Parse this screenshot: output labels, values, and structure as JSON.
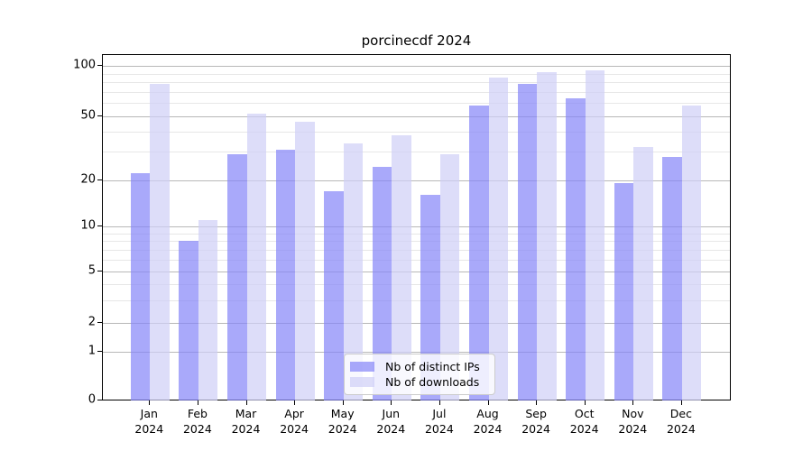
{
  "title": "porcinecdf 2024",
  "chart_data": {
    "type": "bar",
    "title": "porcinecdf 2024",
    "categories": [
      "Jan 2024",
      "Feb 2024",
      "Mar 2024",
      "Apr 2024",
      "May 2024",
      "Jun 2024",
      "Jul 2024",
      "Aug 2024",
      "Sep 2024",
      "Oct 2024",
      "Nov 2024",
      "Dec 2024"
    ],
    "series": [
      {
        "name": "Nb of distinct IPs",
        "color": "#8585f8",
        "values": [
          22,
          8,
          29,
          31,
          17,
          24,
          16,
          58,
          78,
          64,
          19,
          28
        ]
      },
      {
        "name": "Nb of downloads",
        "color": "#cfcff7",
        "values": [
          78,
          11,
          52,
          46,
          34,
          38,
          29,
          85,
          92,
          94,
          32,
          58
        ]
      }
    ],
    "bar_opacity": 0.7,
    "xlabel": "",
    "ylabel": "",
    "yscale": "symlog-like",
    "yticks": [
      0,
      1,
      2,
      5,
      10,
      20,
      50,
      100
    ],
    "y_minor_gridlines": [
      3,
      4,
      6,
      7,
      8,
      9,
      30,
      40,
      60,
      70,
      80,
      90
    ],
    "ylim": [
      0,
      117
    ],
    "grid": true,
    "legend_position": "lower center",
    "grid_major_color": "#b8b8b8",
    "grid_minor_color": "#e7e7e7"
  }
}
